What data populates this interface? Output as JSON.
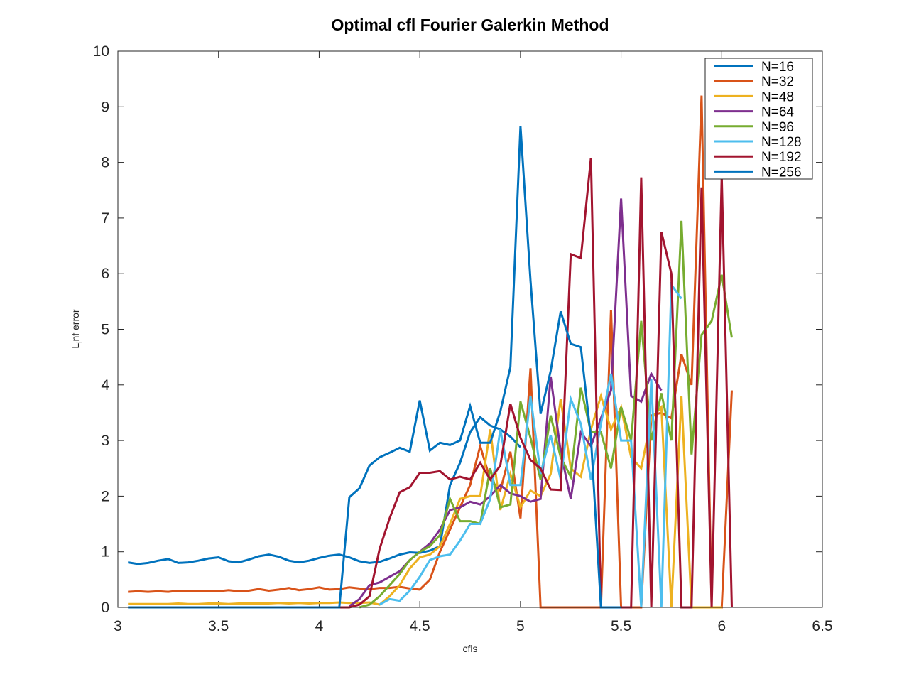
{
  "chart_data": {
    "type": "line",
    "title": "Optimal cfl Fourier Galerkin Method",
    "xlabel": "cfls",
    "ylabel_main": "L",
    "ylabel_sub": "i",
    "ylabel_rest": "nf error",
    "xlim": [
      3,
      6.5
    ],
    "ylim": [
      0,
      10
    ],
    "xticks": [
      "3",
      "3.5",
      "4",
      "4.5",
      "5",
      "5.5",
      "6",
      "6.5"
    ],
    "yticks": [
      "0",
      "1",
      "2",
      "3",
      "4",
      "5",
      "6",
      "7",
      "8",
      "9",
      "10"
    ],
    "grid": false,
    "legend_position": "top-right",
    "series": [
      {
        "name": "N=16",
        "color": "#0072BD",
        "x": [
          3.05,
          3.1,
          3.15,
          3.2,
          3.25,
          3.3,
          3.35,
          3.4,
          3.45,
          3.5,
          3.55,
          3.6,
          3.65,
          3.7,
          3.75,
          3.8,
          3.85,
          3.9,
          3.95,
          4.0,
          4.05,
          4.1,
          4.15,
          4.2,
          4.25,
          4.3,
          4.35,
          4.4,
          4.45,
          4.5,
          4.55,
          4.6,
          4.65,
          4.7,
          4.75,
          4.8,
          4.85,
          4.9,
          4.95,
          5.0
        ],
        "y": [
          0.81,
          0.78,
          0.8,
          0.84,
          0.87,
          0.8,
          0.81,
          0.84,
          0.88,
          0.9,
          0.83,
          0.81,
          0.86,
          0.92,
          0.95,
          0.91,
          0.84,
          0.81,
          0.84,
          0.89,
          0.93,
          0.95,
          0.9,
          0.83,
          0.8,
          0.82,
          0.88,
          0.95,
          0.99,
          0.98,
          1.02,
          1.1,
          2.2,
          2.6,
          3.15,
          3.42,
          3.27,
          3.2,
          3.07,
          2.88
        ]
      },
      {
        "name": "N=32",
        "color": "#D95319",
        "x": [
          3.05,
          3.1,
          3.15,
          3.2,
          3.25,
          3.3,
          3.35,
          3.4,
          3.45,
          3.5,
          3.55,
          3.6,
          3.65,
          3.7,
          3.75,
          3.8,
          3.85,
          3.9,
          3.95,
          4.0,
          4.05,
          4.1,
          4.15,
          4.2,
          4.25,
          4.3,
          4.35,
          4.4,
          4.45,
          4.5,
          4.55,
          4.6,
          4.65,
          4.7,
          4.75,
          4.8,
          4.85,
          4.9,
          4.95,
          5.0,
          5.05,
          5.1,
          5.15,
          5.2,
          5.25,
          5.3,
          5.35,
          5.4,
          5.45,
          5.5,
          5.55,
          5.6,
          5.65,
          5.7,
          5.75,
          5.8,
          5.85,
          5.9,
          5.95,
          6.0,
          6.05
        ],
        "y": [
          0.28,
          0.29,
          0.28,
          0.29,
          0.28,
          0.3,
          0.29,
          0.3,
          0.3,
          0.29,
          0.31,
          0.29,
          0.3,
          0.33,
          0.3,
          0.32,
          0.35,
          0.31,
          0.33,
          0.36,
          0.32,
          0.33,
          0.36,
          0.34,
          0.33,
          0.35,
          0.35,
          0.37,
          0.34,
          0.32,
          0.5,
          1.0,
          1.4,
          1.8,
          2.2,
          2.9,
          2.3,
          2.1,
          2.8,
          1.6,
          4.3,
          0.0,
          0.0,
          0.0,
          0.0,
          0.0,
          0.0,
          0.0,
          5.35,
          0.0,
          0.0,
          0.0,
          3.45,
          3.5,
          3.4,
          4.55,
          4.0,
          9.2,
          0.0,
          0.0,
          3.9
        ]
      },
      {
        "name": "N=48",
        "color": "#EDB120",
        "x": [
          3.05,
          3.1,
          3.15,
          3.2,
          3.25,
          3.3,
          3.35,
          3.4,
          3.45,
          3.5,
          3.55,
          3.6,
          3.65,
          3.7,
          3.75,
          3.8,
          3.85,
          3.9,
          3.95,
          4.0,
          4.05,
          4.1,
          4.15,
          4.2,
          4.25,
          4.3,
          4.35,
          4.4,
          4.45,
          4.5,
          4.55,
          4.6,
          4.65,
          4.7,
          4.75,
          4.8,
          4.85,
          4.9,
          4.95,
          5.0,
          5.05,
          5.1,
          5.15,
          5.2,
          5.25,
          5.3,
          5.35,
          5.4,
          5.45,
          5.5,
          5.55,
          5.6,
          5.65,
          5.7,
          5.75,
          5.8,
          5.85,
          5.9,
          5.95,
          6.0
        ],
        "y": [
          0.06,
          0.06,
          0.06,
          0.06,
          0.06,
          0.07,
          0.06,
          0.06,
          0.07,
          0.07,
          0.06,
          0.07,
          0.07,
          0.07,
          0.07,
          0.08,
          0.07,
          0.08,
          0.07,
          0.08,
          0.08,
          0.09,
          0.08,
          0.08,
          0.09,
          0.05,
          0.2,
          0.4,
          0.7,
          0.9,
          0.95,
          1.1,
          1.5,
          1.95,
          2.0,
          2.0,
          3.2,
          1.75,
          2.4,
          1.8,
          2.1,
          2.0,
          2.4,
          3.75,
          2.5,
          2.35,
          3.2,
          3.8,
          3.2,
          3.6,
          2.7,
          2.5,
          3.4,
          3.6,
          0.0,
          3.8,
          0.0,
          0.0,
          0.0,
          0.0
        ]
      },
      {
        "name": "N=64",
        "color": "#7E2F8E",
        "x": [
          4.15,
          4.2,
          4.25,
          4.3,
          4.35,
          4.4,
          4.45,
          4.5,
          4.55,
          4.6,
          4.65,
          4.7,
          4.75,
          4.8,
          4.85,
          4.9,
          4.95,
          5.0,
          5.05,
          5.1,
          5.15,
          5.2,
          5.25,
          5.3,
          5.35,
          5.4,
          5.45,
          5.5,
          5.55,
          5.6,
          5.65,
          5.7
        ],
        "y": [
          0.02,
          0.15,
          0.4,
          0.45,
          0.55,
          0.65,
          0.85,
          1.0,
          1.15,
          1.4,
          1.75,
          1.8,
          1.9,
          1.85,
          2.0,
          2.2,
          2.05,
          2.0,
          1.9,
          1.95,
          4.15,
          2.8,
          1.95,
          3.15,
          2.9,
          3.4,
          3.9,
          7.35,
          3.8,
          3.7,
          4.2,
          3.9
        ]
      },
      {
        "name": "N=96",
        "color": "#77AC30",
        "x": [
          4.2,
          4.25,
          4.3,
          4.35,
          4.4,
          4.45,
          4.5,
          4.55,
          4.6,
          4.65,
          4.7,
          4.75,
          4.8,
          4.85,
          4.9,
          4.95,
          5.0,
          5.05,
          5.1,
          5.15,
          5.2,
          5.25,
          5.3,
          5.35,
          5.4,
          5.45,
          5.5,
          5.55,
          5.6,
          5.65,
          5.7,
          5.75,
          5.8,
          5.85,
          5.9,
          5.95,
          6.0,
          6.05
        ],
        "y": [
          0.0,
          0.05,
          0.2,
          0.4,
          0.6,
          0.85,
          1.0,
          1.1,
          1.3,
          1.95,
          1.55,
          1.55,
          1.5,
          2.5,
          1.8,
          1.85,
          3.7,
          3.05,
          2.3,
          3.45,
          2.7,
          2.35,
          3.95,
          3.15,
          3.15,
          2.5,
          3.6,
          3.0,
          5.15,
          3.0,
          3.85,
          3.0,
          6.95,
          2.75,
          4.9,
          5.15,
          5.98,
          4.85
        ]
      },
      {
        "name": "N=128",
        "color": "#4DBEEE",
        "x": [
          4.3,
          4.35,
          4.4,
          4.45,
          4.5,
          4.55,
          4.6,
          4.65,
          4.7,
          4.75,
          4.8,
          4.85,
          4.9,
          4.95,
          5.0,
          5.05,
          5.1,
          5.15,
          5.2,
          5.25,
          5.3,
          5.35,
          5.4,
          5.45,
          5.5,
          5.55,
          5.6,
          5.65,
          5.7,
          5.75,
          5.8
        ],
        "y": [
          0.05,
          0.15,
          0.12,
          0.3,
          0.55,
          0.85,
          0.92,
          0.95,
          1.2,
          1.5,
          1.5,
          1.95,
          3.2,
          2.2,
          2.2,
          3.8,
          2.4,
          3.1,
          2.3,
          3.75,
          3.3,
          2.3,
          3.3,
          4.2,
          3.0,
          3.0,
          0.0,
          4.1,
          0.0,
          5.8,
          5.55
        ]
      },
      {
        "name": "N=192",
        "color": "#A2142F",
        "x": [
          4.05,
          4.1,
          4.15,
          4.2,
          4.25,
          4.3,
          4.35,
          4.4,
          4.45,
          4.5,
          4.55,
          4.6,
          4.65,
          4.7,
          4.75,
          4.8,
          4.85,
          4.9,
          4.95,
          5.0,
          5.05,
          5.1,
          5.15,
          5.2,
          5.25,
          5.3,
          5.35,
          5.4,
          5.45,
          5.5,
          5.55,
          5.6,
          5.65,
          5.7,
          5.75,
          5.8,
          5.85,
          5.9,
          5.95,
          6.0,
          6.05
        ],
        "y": [
          0.0,
          0.0,
          0.0,
          0.05,
          0.2,
          1.05,
          1.6,
          2.07,
          2.16,
          2.42,
          2.42,
          2.45,
          2.3,
          2.35,
          2.3,
          2.6,
          2.3,
          2.55,
          3.66,
          3.05,
          2.65,
          2.5,
          2.12,
          2.11,
          6.35,
          6.28,
          8.08,
          0.0,
          0.0,
          0.0,
          0.0,
          7.73,
          0.0,
          6.75,
          6.0,
          0.0,
          0.0,
          7.55,
          0.0,
          7.75,
          0.0
        ]
      },
      {
        "name": "N=256",
        "color": "#0072BD",
        "x": [
          3.05,
          3.5,
          4.0,
          4.1,
          4.15,
          4.2,
          4.25,
          4.3,
          4.35,
          4.4,
          4.45,
          4.5,
          4.55,
          4.6,
          4.65,
          4.7,
          4.75,
          4.8,
          4.85,
          4.9,
          4.95,
          5.0,
          5.05,
          5.1,
          5.15,
          5.2,
          5.25,
          5.3,
          5.35,
          5.4,
          5.45,
          5.5
        ],
        "y": [
          0.0,
          0.0,
          0.0,
          0.0,
          1.98,
          2.14,
          2.55,
          2.7,
          2.78,
          2.87,
          2.8,
          3.72,
          2.82,
          2.96,
          2.92,
          3.0,
          3.62,
          2.96,
          2.96,
          3.52,
          4.32,
          8.65,
          5.88,
          3.48,
          4.25,
          5.32,
          4.74,
          4.68,
          3.05,
          0.0,
          0.0,
          0.0
        ]
      }
    ]
  }
}
